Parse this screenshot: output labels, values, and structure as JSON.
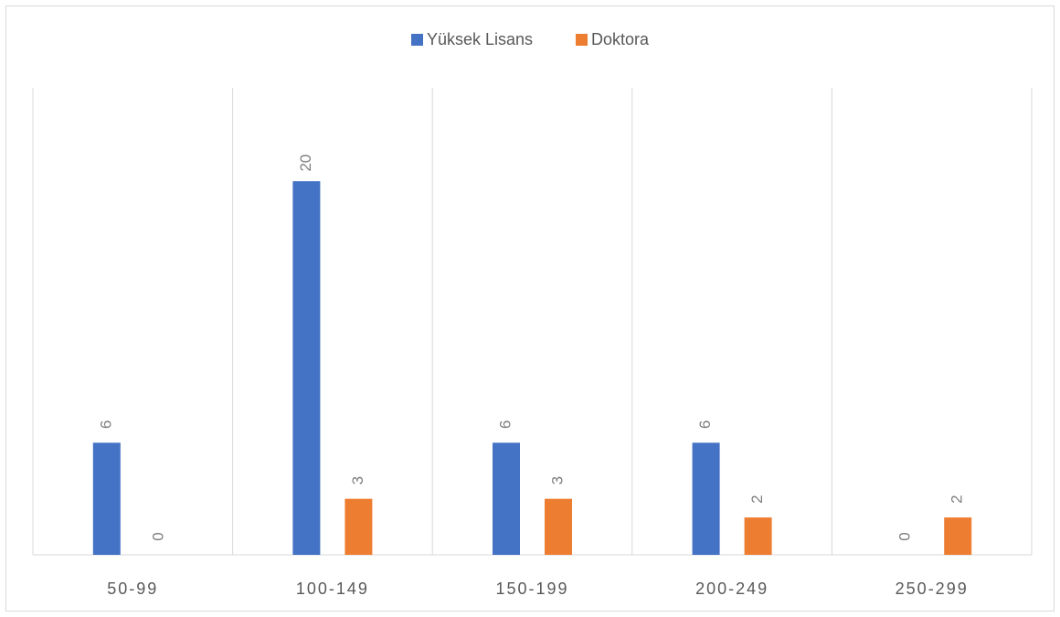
{
  "chart_data": {
    "type": "bar",
    "categories": [
      "50-99",
      "100-149",
      "150-199",
      "200-249",
      "250-299"
    ],
    "series": [
      {
        "name": "Yüksek Lisans",
        "color": "#4472c4",
        "values": [
          6,
          20,
          6,
          6,
          0
        ]
      },
      {
        "name": "Doktora",
        "color": "#ed7d31",
        "values": [
          0,
          3,
          3,
          2,
          2
        ]
      }
    ],
    "ylim": [
      0,
      25
    ],
    "grid": true,
    "legend": "top"
  }
}
